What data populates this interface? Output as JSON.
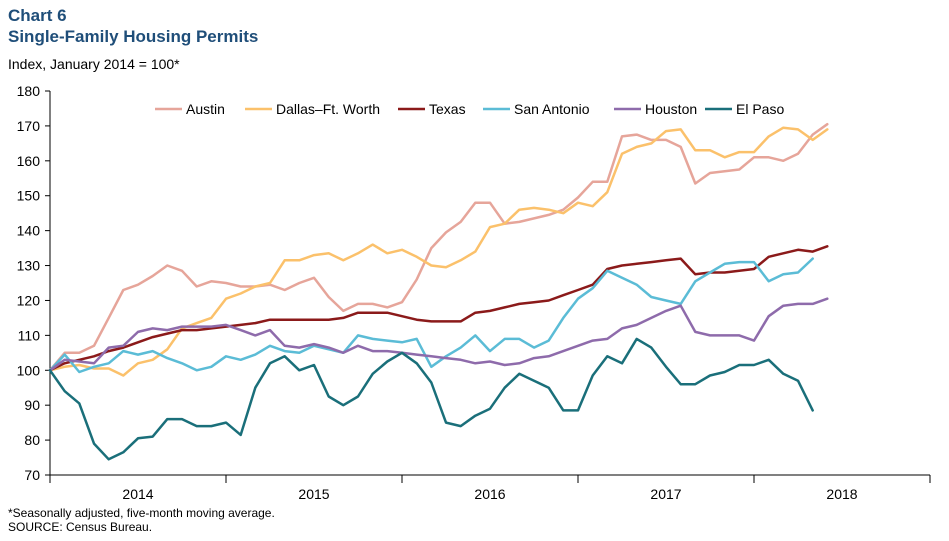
{
  "header": {
    "chart_number": "Chart 6",
    "title": "Single-Family Housing Permits",
    "subtitle": "Index, January 2014 = 100*"
  },
  "footer": {
    "note": "*Seasonally adjusted, five-month moving average.",
    "source": "SOURCE: Census Bureau."
  },
  "chart_data": {
    "type": "line",
    "title": "Single-Family Housing Permits",
    "ylabel": "Index, January 2014 = 100*",
    "xlabel": "",
    "ylim": [
      70,
      180
    ],
    "yticks": [
      70,
      80,
      90,
      100,
      110,
      120,
      130,
      140,
      150,
      160,
      170,
      180
    ],
    "x_year_labels": [
      "2014",
      "2015",
      "2016",
      "2017",
      "2018"
    ],
    "x_start": "2014-01",
    "x_end": "2018-12",
    "grid": false,
    "legend_position": "top",
    "series": [
      {
        "name": "Austin",
        "color": "#e6a59a",
        "values": [
          100,
          105,
          105,
          107,
          115,
          123,
          124.5,
          127,
          130,
          128.5,
          124,
          125.5,
          125,
          124,
          124,
          124.5,
          123,
          125,
          126.5,
          121,
          117,
          119,
          119,
          118,
          119.5,
          126,
          135,
          139.5,
          142.5,
          148,
          148,
          142,
          142.5,
          143.5,
          144.5,
          146,
          149.5,
          154,
          154,
          167,
          167.5,
          166,
          166,
          164,
          153.5,
          156.5,
          157,
          157.5,
          161,
          161,
          160,
          162,
          167.5,
          170.5
        ]
      },
      {
        "name": "Dallas–Ft. Worth",
        "color": "#fbc16b",
        "values": [
          100,
          101,
          101.5,
          100.5,
          100.5,
          98.5,
          102,
          103,
          106,
          112,
          113.5,
          115,
          120.5,
          122,
          124,
          125,
          131.5,
          131.5,
          133,
          133.5,
          131.5,
          133.5,
          136,
          133.5,
          134.5,
          132.5,
          130,
          129.5,
          131.5,
          134,
          141,
          142,
          146,
          146.5,
          146,
          145,
          148,
          147,
          151,
          162,
          164,
          165,
          168.5,
          169,
          163,
          163,
          161,
          162.5,
          162.5,
          167,
          169.5,
          169,
          166,
          169
        ]
      },
      {
        "name": "Texas",
        "color": "#8b1a1a",
        "values": [
          100,
          102,
          103,
          104,
          105.5,
          106.5,
          108,
          109.5,
          110.5,
          111.5,
          111.5,
          112,
          112.5,
          113,
          113.5,
          114.5,
          114.5,
          114.5,
          114.5,
          114.5,
          115,
          116.5,
          116.5,
          116.5,
          115.5,
          114.5,
          114,
          114,
          114,
          116.5,
          117,
          118,
          119,
          119.5,
          120,
          121.5,
          123,
          124.5,
          129,
          130,
          130.5,
          131,
          131.5,
          132,
          127.5,
          128,
          128,
          128.5,
          129,
          132.5,
          133.5,
          134.5,
          134,
          135.5
        ]
      },
      {
        "name": "San Antonio",
        "color": "#5bbcd6",
        "values": [
          100,
          104.5,
          99.5,
          101,
          102,
          105.5,
          104.5,
          105.5,
          103.5,
          102,
          100,
          101,
          104,
          103,
          104.5,
          107,
          105.5,
          105,
          107,
          106,
          105,
          110,
          109,
          108.5,
          108,
          109,
          101,
          104,
          106.5,
          110,
          105.5,
          109,
          109,
          106.5,
          108.5,
          115,
          120.5,
          123.5,
          128.5,
          126.5,
          124.5,
          121,
          120,
          119,
          125.5,
          128,
          130.5,
          131,
          131,
          125.5,
          127.5,
          128,
          132
        ]
      },
      {
        "name": "Houston",
        "color": "#8e6bab",
        "values": [
          100,
          103,
          102.5,
          102,
          106.5,
          107,
          111,
          112,
          111.5,
          112.5,
          112.5,
          112.5,
          113,
          111.5,
          110,
          111.5,
          107,
          106.5,
          107.5,
          106.5,
          105,
          107,
          105.5,
          105.5,
          105,
          104.5,
          104,
          103.5,
          103,
          102,
          102.5,
          101.5,
          102,
          103.5,
          104,
          105.5,
          107,
          108.5,
          109,
          112,
          113,
          115,
          117,
          118.5,
          111,
          110,
          110,
          110,
          108.5,
          115.5,
          118.5,
          119,
          119,
          120.5
        ]
      },
      {
        "name": "El Paso",
        "color": "#1a6f7a",
        "values": [
          100,
          94,
          90.5,
          79,
          74.5,
          76.5,
          80.5,
          81,
          86,
          86,
          84,
          84,
          85,
          81.5,
          95,
          102,
          104,
          100,
          101.5,
          92.5,
          90,
          92.5,
          99,
          102.5,
          105,
          102,
          96.5,
          85,
          84,
          87,
          89,
          95,
          99,
          97,
          95,
          88.5,
          88.5,
          98.5,
          104,
          102,
          109,
          106.5,
          101,
          96,
          96,
          98.5,
          99.5,
          101.5,
          101.5,
          103,
          99,
          97,
          88.5
        ]
      }
    ]
  }
}
